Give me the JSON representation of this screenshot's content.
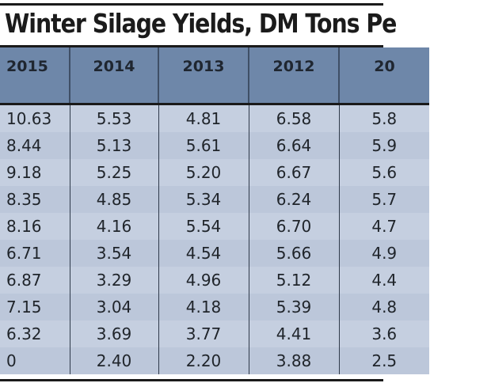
{
  "title": "Winter Silage Yields, DM Tons Pe",
  "columns": [
    "2015",
    "2014",
    "2013",
    "2012",
    "20"
  ],
  "rows": [
    [
      "10.63",
      "5.53",
      "4.81",
      "6.58",
      "5.8"
    ],
    [
      "8.44",
      "5.13",
      "5.61",
      "6.64",
      "5.9"
    ],
    [
      "9.18",
      "5.25",
      "5.20",
      "6.67",
      "5.6"
    ],
    [
      "8.35",
      "4.85",
      "5.34",
      "6.24",
      "5.7"
    ],
    [
      "8.16",
      "4.16",
      "5.54",
      "6.70",
      "4.7"
    ],
    [
      "6.71",
      "3.54",
      "4.54",
      "5.66",
      "4.9"
    ],
    [
      "6.87",
      "3.29",
      "4.96",
      "5.12",
      "4.4"
    ],
    [
      "7.15",
      "3.04",
      "4.18",
      "5.39",
      "4.8"
    ],
    [
      "6.32",
      "3.69",
      "3.77",
      "4.41",
      "3.6"
    ],
    [
      "0",
      "2.40",
      "2.20",
      "3.88",
      "2.5"
    ]
  ],
  "colors": {
    "header_bg": "#6e87a9",
    "body_bg": "#c5cfe0",
    "rule": "#1a1a1a"
  }
}
